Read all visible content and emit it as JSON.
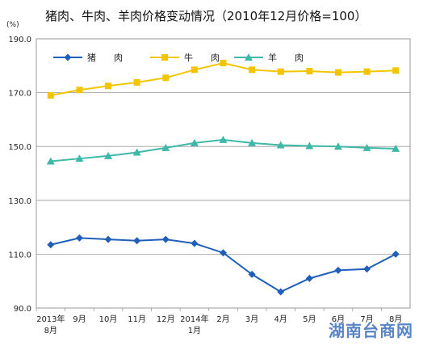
{
  "watermark": "湖南台商网",
  "chart_data": {
    "type": "line",
    "title": "猪肉、牛肉、羊肉价格变动情况（2010年12月价格=100）",
    "unit": "(%)",
    "categories": [
      [
        "2013年",
        "8月"
      ],
      [
        "9月"
      ],
      [
        "10月"
      ],
      [
        "11月"
      ],
      [
        "12月"
      ],
      [
        "2014年",
        "1月"
      ],
      [
        "2月"
      ],
      [
        "3月"
      ],
      [
        "4月"
      ],
      [
        "5月"
      ],
      [
        "6月"
      ],
      [
        "7月"
      ],
      [
        "8月"
      ]
    ],
    "ylim": [
      90,
      190
    ],
    "yticks": [
      "90.0",
      "110.0",
      "130.0",
      "150.0",
      "170.0",
      "190.0"
    ],
    "ytick_values": [
      90,
      110,
      130,
      150,
      170,
      190
    ],
    "grid": true,
    "legend_position": "top-left",
    "series": [
      {
        "name": "猪　　肉",
        "color": "#1f5fb8",
        "marker": "diamond",
        "values": [
          113.5,
          116.0,
          115.5,
          115.0,
          115.5,
          114.0,
          110.5,
          102.5,
          96.0,
          101.0,
          104.0,
          104.5,
          110.0
        ]
      },
      {
        "name": "牛　　肉",
        "color": "#f2c500",
        "marker": "square",
        "values": [
          169.0,
          171.0,
          172.5,
          173.8,
          175.5,
          178.5,
          181.0,
          178.5,
          177.8,
          178.0,
          177.5,
          177.8,
          178.2
        ]
      },
      {
        "name": "羊　　肉",
        "color": "#3fb8a8",
        "marker": "triangle",
        "values": [
          144.5,
          145.5,
          146.5,
          147.8,
          149.5,
          151.3,
          152.5,
          151.3,
          150.5,
          150.2,
          150.0,
          149.5,
          149.2
        ]
      }
    ]
  }
}
